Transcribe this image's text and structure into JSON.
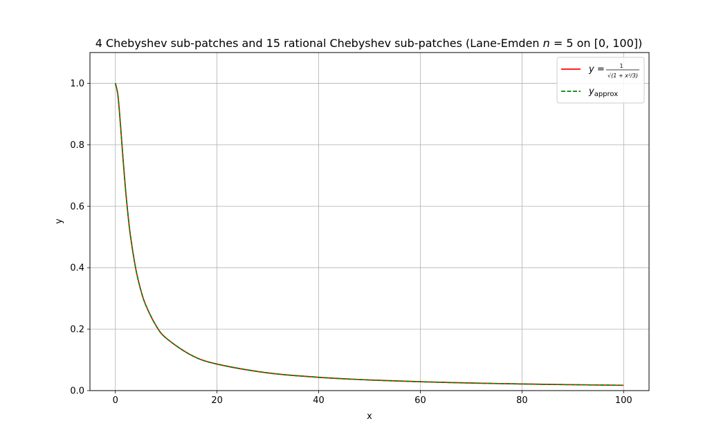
{
  "chart_data": {
    "type": "line",
    "title": "4 Chebyshev sub-patches and 15 rational Chebyshev sub-patches (Lane-Emden n = 5 on [0, 100])",
    "title_parts": {
      "prefix": "4 Chebyshev sub-patches and 15 rational Chebyshev sub-patches (Lane-Emden ",
      "n": "n",
      "eq": " = 5 on [0, 100])"
    },
    "xlabel": "x",
    "ylabel": "y",
    "xlim": [
      -5,
      105
    ],
    "ylim": [
      0.0,
      1.1
    ],
    "xticks": [
      0,
      20,
      40,
      60,
      80,
      100
    ],
    "yticks": [
      0.0,
      0.2,
      0.4,
      0.6,
      0.8,
      1.0
    ],
    "xtick_labels": [
      "0",
      "20",
      "40",
      "60",
      "80",
      "100"
    ],
    "ytick_labels": [
      "0.0",
      "0.2",
      "0.4",
      "0.6",
      "0.8",
      "1.0"
    ],
    "grid": true,
    "legend_position": "top-right",
    "x": [
      0,
      0.5,
      1,
      1.5,
      2,
      2.5,
      3,
      4,
      5,
      6,
      8,
      10,
      15,
      20,
      30,
      40,
      50,
      60,
      70,
      80,
      90,
      100
    ],
    "series": [
      {
        "name": "y = 1/√(1 + x²/3)",
        "label_parts": {
          "lhs": "y = ",
          "num": "1",
          "den": "√(1 + x²/3)"
        },
        "color": "#ff0000",
        "style": "solid",
        "values": [
          1.0,
          0.9608,
          0.866,
          0.7559,
          0.6547,
          0.5698,
          0.5,
          0.3974,
          0.3273,
          0.2774,
          0.2116,
          0.1706,
          0.1147,
          0.0863,
          0.0576,
          0.0433,
          0.0346,
          0.0289,
          0.0247,
          0.0216,
          0.0192,
          0.0173
        ]
      },
      {
        "name": "y_approx",
        "label_parts": {
          "base": "y",
          "sub": "approx"
        },
        "color": "#008000",
        "style": "dashed",
        "values": [
          1.0,
          0.9608,
          0.866,
          0.7559,
          0.6547,
          0.5698,
          0.5,
          0.3974,
          0.3273,
          0.2774,
          0.2116,
          0.1706,
          0.1147,
          0.0863,
          0.0576,
          0.0433,
          0.0346,
          0.0289,
          0.0247,
          0.0216,
          0.0192,
          0.0173
        ]
      }
    ]
  }
}
